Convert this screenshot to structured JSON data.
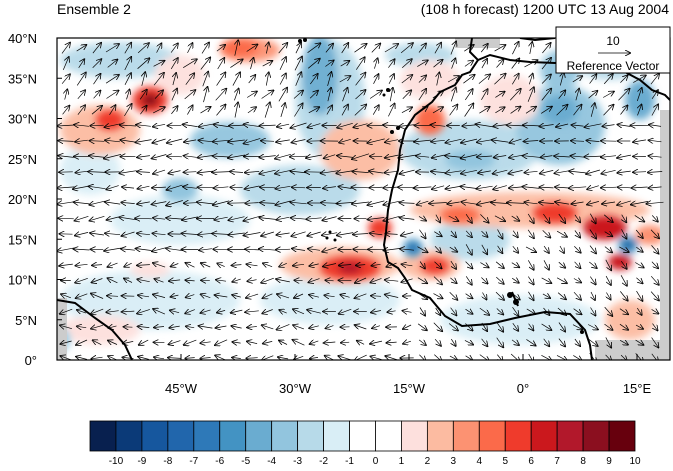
{
  "titles": {
    "left": "Ensemble 2",
    "right": "(108 h forecast) 1200 UTC 13 Aug 2004"
  },
  "reference_vector": {
    "value": "10",
    "label": "Reference Vector"
  },
  "axes": {
    "y_ticks": [
      "40°N",
      "35°N",
      "30°N",
      "25°N",
      "20°N",
      "15°N",
      "10°N",
      "5°N",
      "0°"
    ],
    "x_ticks": [
      "45°W",
      "30°W",
      "15°W",
      "0°",
      "15°E"
    ]
  },
  "colorbar": {
    "labels": [
      "-10",
      "-9",
      "-8",
      "-7",
      "-6",
      "-5",
      "-4",
      "-3",
      "-2",
      "-1",
      "0",
      "1",
      "2",
      "3",
      "4",
      "5",
      "6",
      "7",
      "8",
      "9",
      "10"
    ],
    "colors": [
      "#08204f",
      "#0b3a78",
      "#16579e",
      "#2166ac",
      "#2e79b8",
      "#4393c3",
      "#6aacd0",
      "#92c5de",
      "#b7dae9",
      "#d9eef6",
      "#ffffff",
      "#ffffff",
      "#fde0dd",
      "#fcbba1",
      "#fc9272",
      "#fb6a4a",
      "#ef3b2c",
      "#cb181d",
      "#b2182b",
      "#8b0f1f",
      "#67000d"
    ]
  },
  "map": {
    "land_outline_color": "#000000",
    "missing_data_color": "#cccccc"
  }
}
